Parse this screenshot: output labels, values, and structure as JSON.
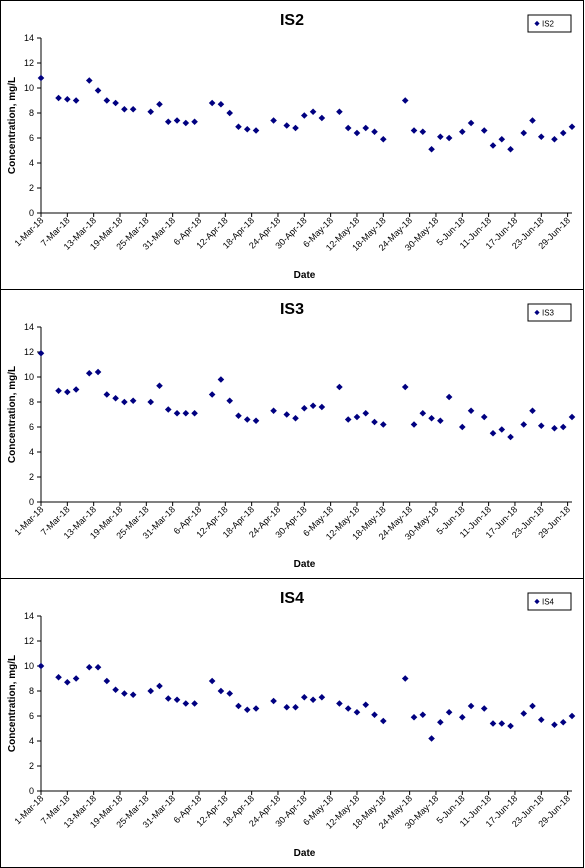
{
  "chart_data": [
    {
      "type": "scatter",
      "title": "IS2",
      "xlabel": "Date",
      "ylabel": "Concentration, mg/L",
      "ylim": [
        0,
        14
      ],
      "yticks": [
        "0",
        "2",
        "4",
        "6",
        "8",
        "10",
        "12",
        "14"
      ],
      "xlim": [
        "1-Mar-18",
        "30-Jun-18"
      ],
      "xticks": [
        "1-Mar-18",
        "7-Mar-18",
        "13-Mar-18",
        "19-Mar-18",
        "25-Mar-18",
        "31-Mar-18",
        "6-Apr-18",
        "12-Apr-18",
        "18-Apr-18",
        "24-Apr-18",
        "30-Apr-18",
        "6-May-18",
        "12-May-18",
        "18-May-18",
        "24-May-18",
        "30-May-18",
        "5-Jun-18",
        "11-Jun-18",
        "17-Jun-18",
        "23-Jun-18",
        "29-Jun-18"
      ],
      "legend_position": "top-right",
      "series": [
        {
          "name": "IS2",
          "color": "#000080",
          "marker": "diamond",
          "points": [
            [
              "1-Mar-18",
              10.8
            ],
            [
              "5-Mar-18",
              9.2
            ],
            [
              "7-Mar-18",
              9.1
            ],
            [
              "9-Mar-18",
              9.0
            ],
            [
              "12-Mar-18",
              10.6
            ],
            [
              "14-Mar-18",
              9.8
            ],
            [
              "16-Mar-18",
              9.0
            ],
            [
              "18-Mar-18",
              8.8
            ],
            [
              "20-Mar-18",
              8.3
            ],
            [
              "22-Mar-18",
              8.3
            ],
            [
              "26-Mar-18",
              8.1
            ],
            [
              "28-Mar-18",
              8.7
            ],
            [
              "30-Mar-18",
              7.3
            ],
            [
              "1-Apr-18",
              7.4
            ],
            [
              "3-Apr-18",
              7.2
            ],
            [
              "5-Apr-18",
              7.3
            ],
            [
              "9-Apr-18",
              8.8
            ],
            [
              "11-Apr-18",
              8.7
            ],
            [
              "13-Apr-18",
              8.0
            ],
            [
              "15-Apr-18",
              6.9
            ],
            [
              "17-Apr-18",
              6.7
            ],
            [
              "19-Apr-18",
              6.6
            ],
            [
              "23-Apr-18",
              7.4
            ],
            [
              "26-Apr-18",
              7.0
            ],
            [
              "28-Apr-18",
              6.8
            ],
            [
              "30-Apr-18",
              7.8
            ],
            [
              "2-May-18",
              8.1
            ],
            [
              "4-May-18",
              7.6
            ],
            [
              "8-May-18",
              8.1
            ],
            [
              "10-May-18",
              6.8
            ],
            [
              "12-May-18",
              6.4
            ],
            [
              "14-May-18",
              6.8
            ],
            [
              "16-May-18",
              6.5
            ],
            [
              "18-May-18",
              5.9
            ],
            [
              "23-May-18",
              9.0
            ],
            [
              "25-May-18",
              6.6
            ],
            [
              "27-May-18",
              6.5
            ],
            [
              "29-May-18",
              5.1
            ],
            [
              "31-May-18",
              6.1
            ],
            [
              "2-Jun-18",
              6.0
            ],
            [
              "5-Jun-18",
              6.5
            ],
            [
              "7-Jun-18",
              7.2
            ],
            [
              "10-Jun-18",
              6.6
            ],
            [
              "12-Jun-18",
              5.4
            ],
            [
              "14-Jun-18",
              5.9
            ],
            [
              "16-Jun-18",
              5.1
            ],
            [
              "19-Jun-18",
              6.4
            ],
            [
              "21-Jun-18",
              7.4
            ],
            [
              "23-Jun-18",
              6.1
            ],
            [
              "26-Jun-18",
              5.9
            ],
            [
              "28-Jun-18",
              6.4
            ],
            [
              "30-Jun-18",
              6.9
            ]
          ]
        }
      ]
    },
    {
      "type": "scatter",
      "title": "IS3",
      "xlabel": "Date",
      "ylabel": "Concentration, mg/L",
      "ylim": [
        0,
        14
      ],
      "yticks": [
        "0",
        "2",
        "4",
        "6",
        "8",
        "10",
        "12",
        "14"
      ],
      "xlim": [
        "1-Mar-18",
        "30-Jun-18"
      ],
      "xticks": [
        "1-Mar-18",
        "7-Mar-18",
        "13-Mar-18",
        "19-Mar-18",
        "25-Mar-18",
        "31-Mar-18",
        "6-Apr-18",
        "12-Apr-18",
        "18-Apr-18",
        "24-Apr-18",
        "30-Apr-18",
        "6-May-18",
        "12-May-18",
        "18-May-18",
        "24-May-18",
        "30-May-18",
        "5-Jun-18",
        "11-Jun-18",
        "17-Jun-18",
        "23-Jun-18",
        "29-Jun-18"
      ],
      "legend_position": "top-right",
      "series": [
        {
          "name": "IS3",
          "color": "#000080",
          "marker": "diamond",
          "points": [
            [
              "1-Mar-18",
              11.9
            ],
            [
              "5-Mar-18",
              8.9
            ],
            [
              "7-Mar-18",
              8.8
            ],
            [
              "9-Mar-18",
              9.0
            ],
            [
              "12-Mar-18",
              10.3
            ],
            [
              "14-Mar-18",
              10.4
            ],
            [
              "16-Mar-18",
              8.6
            ],
            [
              "18-Mar-18",
              8.3
            ],
            [
              "20-Mar-18",
              8.0
            ],
            [
              "22-Mar-18",
              8.1
            ],
            [
              "26-Mar-18",
              8.0
            ],
            [
              "28-Mar-18",
              9.3
            ],
            [
              "30-Mar-18",
              7.4
            ],
            [
              "1-Apr-18",
              7.1
            ],
            [
              "3-Apr-18",
              7.1
            ],
            [
              "5-Apr-18",
              7.1
            ],
            [
              "9-Apr-18",
              8.6
            ],
            [
              "11-Apr-18",
              9.8
            ],
            [
              "13-Apr-18",
              8.1
            ],
            [
              "15-Apr-18",
              6.9
            ],
            [
              "17-Apr-18",
              6.6
            ],
            [
              "19-Apr-18",
              6.5
            ],
            [
              "23-Apr-18",
              7.3
            ],
            [
              "26-Apr-18",
              7.0
            ],
            [
              "28-Apr-18",
              6.7
            ],
            [
              "30-Apr-18",
              7.5
            ],
            [
              "2-May-18",
              7.7
            ],
            [
              "4-May-18",
              7.6
            ],
            [
              "8-May-18",
              9.2
            ],
            [
              "10-May-18",
              6.6
            ],
            [
              "12-May-18",
              6.8
            ],
            [
              "14-May-18",
              7.1
            ],
            [
              "16-May-18",
              6.4
            ],
            [
              "18-May-18",
              6.2
            ],
            [
              "23-May-18",
              9.2
            ],
            [
              "25-May-18",
              6.2
            ],
            [
              "27-May-18",
              7.1
            ],
            [
              "29-May-18",
              6.7
            ],
            [
              "31-May-18",
              6.5
            ],
            [
              "2-Jun-18",
              8.4
            ],
            [
              "5-Jun-18",
              6.0
            ],
            [
              "7-Jun-18",
              7.3
            ],
            [
              "10-Jun-18",
              6.8
            ],
            [
              "12-Jun-18",
              5.5
            ],
            [
              "14-Jun-18",
              5.8
            ],
            [
              "16-Jun-18",
              5.2
            ],
            [
              "19-Jun-18",
              6.2
            ],
            [
              "21-Jun-18",
              7.3
            ],
            [
              "23-Jun-18",
              6.1
            ],
            [
              "26-Jun-18",
              5.9
            ],
            [
              "28-Jun-18",
              6.0
            ],
            [
              "30-Jun-18",
              6.8
            ]
          ]
        }
      ]
    },
    {
      "type": "scatter",
      "title": "IS4",
      "xlabel": "Date",
      "ylabel": "Concentration, mg/L",
      "ylim": [
        0,
        14
      ],
      "yticks": [
        "0",
        "2",
        "4",
        "6",
        "8",
        "10",
        "12",
        "14"
      ],
      "xlim": [
        "1-Mar-18",
        "30-Jun-18"
      ],
      "xticks": [
        "1-Mar-18",
        "7-Mar-18",
        "13-Mar-18",
        "19-Mar-18",
        "25-Mar-18",
        "31-Mar-18",
        "6-Apr-18",
        "12-Apr-18",
        "18-Apr-18",
        "24-Apr-18",
        "30-Apr-18",
        "6-May-18",
        "12-May-18",
        "18-May-18",
        "24-May-18",
        "30-May-18",
        "5-Jun-18",
        "11-Jun-18",
        "17-Jun-18",
        "23-Jun-18",
        "29-Jun-18"
      ],
      "legend_position": "top-right",
      "series": [
        {
          "name": "IS4",
          "color": "#000080",
          "marker": "diamond",
          "points": [
            [
              "1-Mar-18",
              10.0
            ],
            [
              "5-Mar-18",
              9.1
            ],
            [
              "7-Mar-18",
              8.7
            ],
            [
              "9-Mar-18",
              9.0
            ],
            [
              "12-Mar-18",
              9.9
            ],
            [
              "14-Mar-18",
              9.9
            ],
            [
              "16-Mar-18",
              8.8
            ],
            [
              "18-Mar-18",
              8.1
            ],
            [
              "20-Mar-18",
              7.8
            ],
            [
              "22-Mar-18",
              7.7
            ],
            [
              "26-Mar-18",
              8.0
            ],
            [
              "28-Mar-18",
              8.4
            ],
            [
              "30-Mar-18",
              7.4
            ],
            [
              "1-Apr-18",
              7.3
            ],
            [
              "3-Apr-18",
              7.0
            ],
            [
              "5-Apr-18",
              7.0
            ],
            [
              "9-Apr-18",
              8.8
            ],
            [
              "11-Apr-18",
              8.0
            ],
            [
              "13-Apr-18",
              7.8
            ],
            [
              "15-Apr-18",
              6.8
            ],
            [
              "17-Apr-18",
              6.5
            ],
            [
              "19-Apr-18",
              6.6
            ],
            [
              "23-Apr-18",
              7.2
            ],
            [
              "26-Apr-18",
              6.7
            ],
            [
              "28-Apr-18",
              6.7
            ],
            [
              "30-Apr-18",
              7.5
            ],
            [
              "2-May-18",
              7.3
            ],
            [
              "4-May-18",
              7.5
            ],
            [
              "8-May-18",
              7.0
            ],
            [
              "10-May-18",
              6.6
            ],
            [
              "12-May-18",
              6.3
            ],
            [
              "14-May-18",
              6.9
            ],
            [
              "16-May-18",
              6.1
            ],
            [
              "18-May-18",
              5.6
            ],
            [
              "23-May-18",
              9.0
            ],
            [
              "25-May-18",
              5.9
            ],
            [
              "27-May-18",
              6.1
            ],
            [
              "29-May-18",
              4.2
            ],
            [
              "31-May-18",
              5.5
            ],
            [
              "2-Jun-18",
              6.3
            ],
            [
              "5-Jun-18",
              5.9
            ],
            [
              "7-Jun-18",
              6.8
            ],
            [
              "10-Jun-18",
              6.6
            ],
            [
              "12-Jun-18",
              5.4
            ],
            [
              "14-Jun-18",
              5.4
            ],
            [
              "16-Jun-18",
              5.2
            ],
            [
              "19-Jun-18",
              6.2
            ],
            [
              "21-Jun-18",
              6.8
            ],
            [
              "23-Jun-18",
              5.7
            ],
            [
              "26-Jun-18",
              5.3
            ],
            [
              "28-Jun-18",
              5.5
            ],
            [
              "30-Jun-18",
              6.0
            ]
          ]
        }
      ]
    }
  ]
}
